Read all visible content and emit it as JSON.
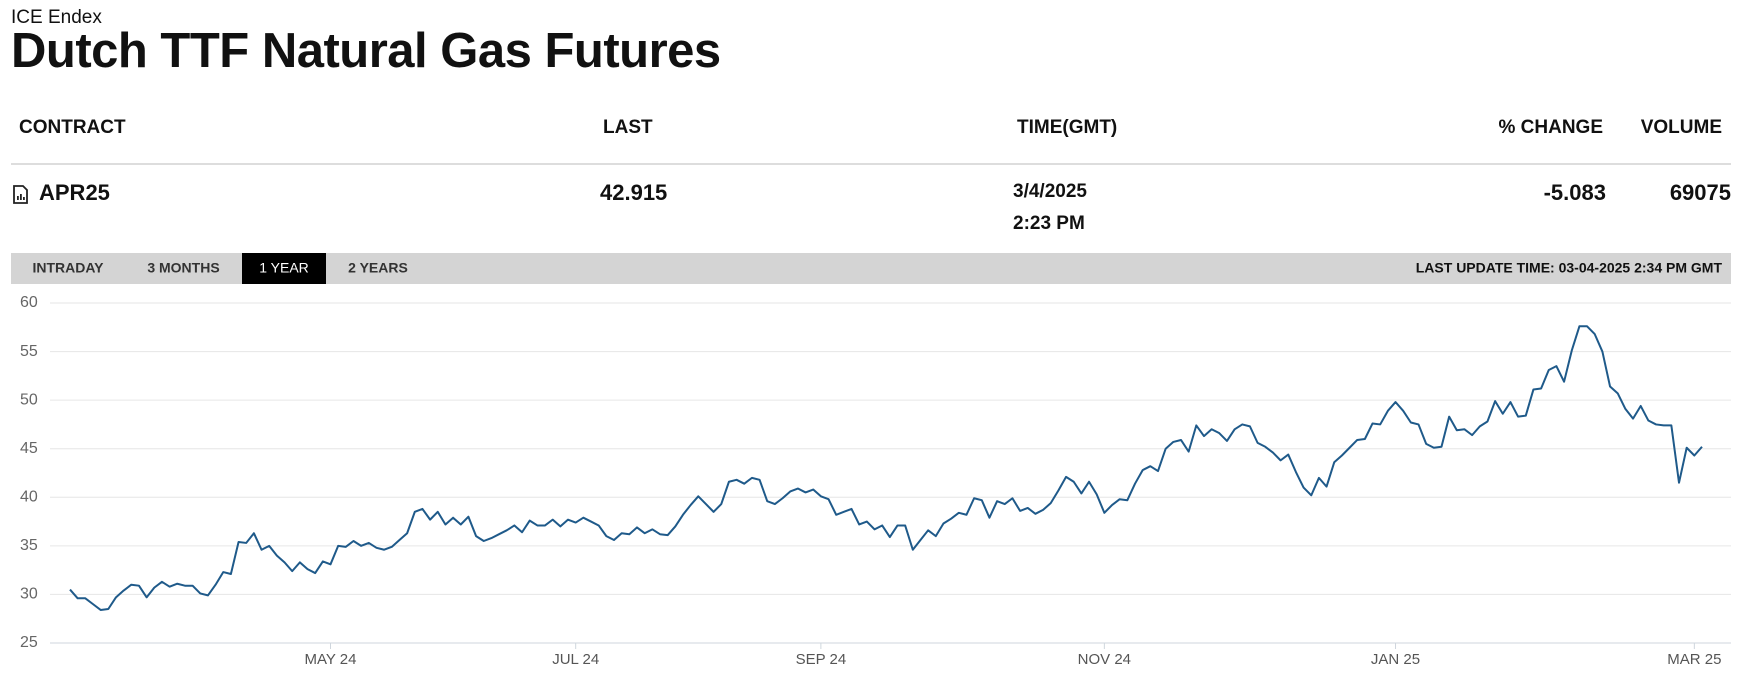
{
  "header": {
    "exchange": "ICE Endex",
    "title": "Dutch TTF Natural Gas Futures"
  },
  "table": {
    "columns": [
      "CONTRACT",
      "LAST",
      "TIME(GMT)",
      "% CHANGE",
      "VOLUME"
    ],
    "rows": [
      {
        "contract": "APR25",
        "last": "42.915",
        "date": "3/4/2025",
        "time": "2:23 PM",
        "change": "-5.083",
        "volume": "69075"
      }
    ]
  },
  "tabs": {
    "items": [
      "INTRADAY",
      "3 MONTHS",
      "1 YEAR",
      "2 YEARS"
    ],
    "active": 2
  },
  "last_update": "LAST UPDATE TIME: 03-04-2025 2:34 PM GMT",
  "chart_data": {
    "type": "line",
    "color": "#1f5a8a",
    "grid": true,
    "ylim": [
      25,
      60
    ],
    "yticks": [
      25,
      30,
      35,
      40,
      45,
      50,
      55,
      60
    ],
    "categories": [
      null,
      null,
      null,
      null,
      null,
      null,
      null,
      null,
      null,
      null,
      null,
      null,
      null,
      null,
      null,
      null,
      null,
      null,
      null,
      null,
      null,
      null,
      null,
      null,
      null,
      null,
      null,
      null,
      null,
      null,
      null,
      null,
      null,
      null,
      "MAY 24",
      null,
      null,
      null,
      null,
      null,
      null,
      null,
      null,
      null,
      null,
      null,
      null,
      null,
      null,
      null,
      null,
      null,
      null,
      null,
      null,
      null,
      null,
      null,
      null,
      null,
      null,
      null,
      null,
      null,
      null,
      null,
      "JUL 24",
      null,
      null,
      null,
      null,
      null,
      null,
      null,
      null,
      null,
      null,
      null,
      null,
      null,
      null,
      null,
      null,
      null,
      null,
      null,
      null,
      null,
      null,
      null,
      null,
      null,
      null,
      null,
      null,
      null,
      null,
      null,
      "SEP 24",
      null,
      null,
      null,
      null,
      null,
      null,
      null,
      null,
      null,
      null,
      null,
      null,
      null,
      null,
      null,
      null,
      null,
      null,
      null,
      null,
      null,
      null,
      null,
      null,
      null,
      null,
      null,
      null,
      null,
      null,
      null,
      null,
      null,
      null,
      null,
      null,
      "NOV 24",
      null,
      null,
      null,
      null,
      null,
      null,
      null,
      null,
      null,
      null,
      null,
      null,
      null,
      null,
      null,
      null,
      null,
      null,
      null,
      null,
      null,
      null,
      null,
      null,
      null,
      null,
      null,
      null,
      null,
      null,
      null,
      null,
      null,
      null,
      null,
      null,
      null,
      "JAN 25",
      null,
      null,
      null,
      null,
      null,
      null,
      null,
      null,
      null,
      null,
      null,
      null,
      null,
      null,
      null,
      null,
      null,
      null,
      null,
      null,
      null,
      null,
      null,
      null,
      null,
      null,
      null,
      null,
      null,
      null,
      null,
      null,
      null,
      null,
      null,
      null,
      null,
      null,
      "MAR 25",
      null
    ],
    "values": [
      30.5,
      29.6,
      29.6,
      29.0,
      28.4,
      28.5,
      29.7,
      30.4,
      31.0,
      30.9,
      29.7,
      30.7,
      31.3,
      30.8,
      31.1,
      30.9,
      30.9,
      30.1,
      29.9,
      31.0,
      32.3,
      32.1,
      35.4,
      35.3,
      36.3,
      34.6,
      35.0,
      34.0,
      33.3,
      32.4,
      33.3,
      32.6,
      32.2,
      33.4,
      33.1,
      35.0,
      34.9,
      35.5,
      35.0,
      35.3,
      34.8,
      34.6,
      34.9,
      35.6,
      36.3,
      38.5,
      38.8,
      37.7,
      38.5,
      37.2,
      37.9,
      37.2,
      38.0,
      36.0,
      35.5,
      35.8,
      36.2,
      36.6,
      37.1,
      36.4,
      37.6,
      37.1,
      37.1,
      37.7,
      37.0,
      37.7,
      37.4,
      37.9,
      37.5,
      37.1,
      36.0,
      35.6,
      36.3,
      36.2,
      36.9,
      36.3,
      36.7,
      36.2,
      36.1,
      37.0,
      38.2,
      39.2,
      40.1,
      39.3,
      38.5,
      39.3,
      41.6,
      41.8,
      41.4,
      42.0,
      41.8,
      39.6,
      39.3,
      39.9,
      40.6,
      40.9,
      40.5,
      40.8,
      40.1,
      39.8,
      38.2,
      38.5,
      38.8,
      37.2,
      37.5,
      36.7,
      37.1,
      35.9,
      37.1,
      37.1,
      34.6,
      35.6,
      36.6,
      36.0,
      37.3,
      37.8,
      38.4,
      38.2,
      39.9,
      39.7,
      37.9,
      39.6,
      39.3,
      39.9,
      38.6,
      38.9,
      38.3,
      38.7,
      39.4,
      40.7,
      42.1,
      41.6,
      40.4,
      41.6,
      40.3,
      38.4,
      39.2,
      39.8,
      39.7,
      41.4,
      42.8,
      43.2,
      42.7,
      45.0,
      45.7,
      45.9,
      44.7,
      47.4,
      46.3,
      47.0,
      46.6,
      45.8,
      47.0,
      47.5,
      47.3,
      45.6,
      45.2,
      44.6,
      43.8,
      44.4,
      42.6,
      41.0,
      40.2,
      42.0,
      41.1,
      43.6,
      44.3,
      45.1,
      45.9,
      46.0,
      47.6,
      47.5,
      48.9,
      49.8,
      48.9,
      47.7,
      47.5,
      45.5,
      45.1,
      45.2,
      48.3,
      46.9,
      47.0,
      46.4,
      47.3,
      47.8,
      49.9,
      48.6,
      49.8,
      48.3,
      48.4,
      51.1,
      51.2,
      53.1,
      53.5,
      51.9,
      55.1,
      57.6,
      57.6,
      56.8,
      55.0,
      51.4,
      50.7,
      49.1,
      48.1,
      49.4,
      47.9,
      47.5,
      47.4,
      47.4,
      41.5,
      45.1,
      44.3,
      45.2
    ]
  }
}
